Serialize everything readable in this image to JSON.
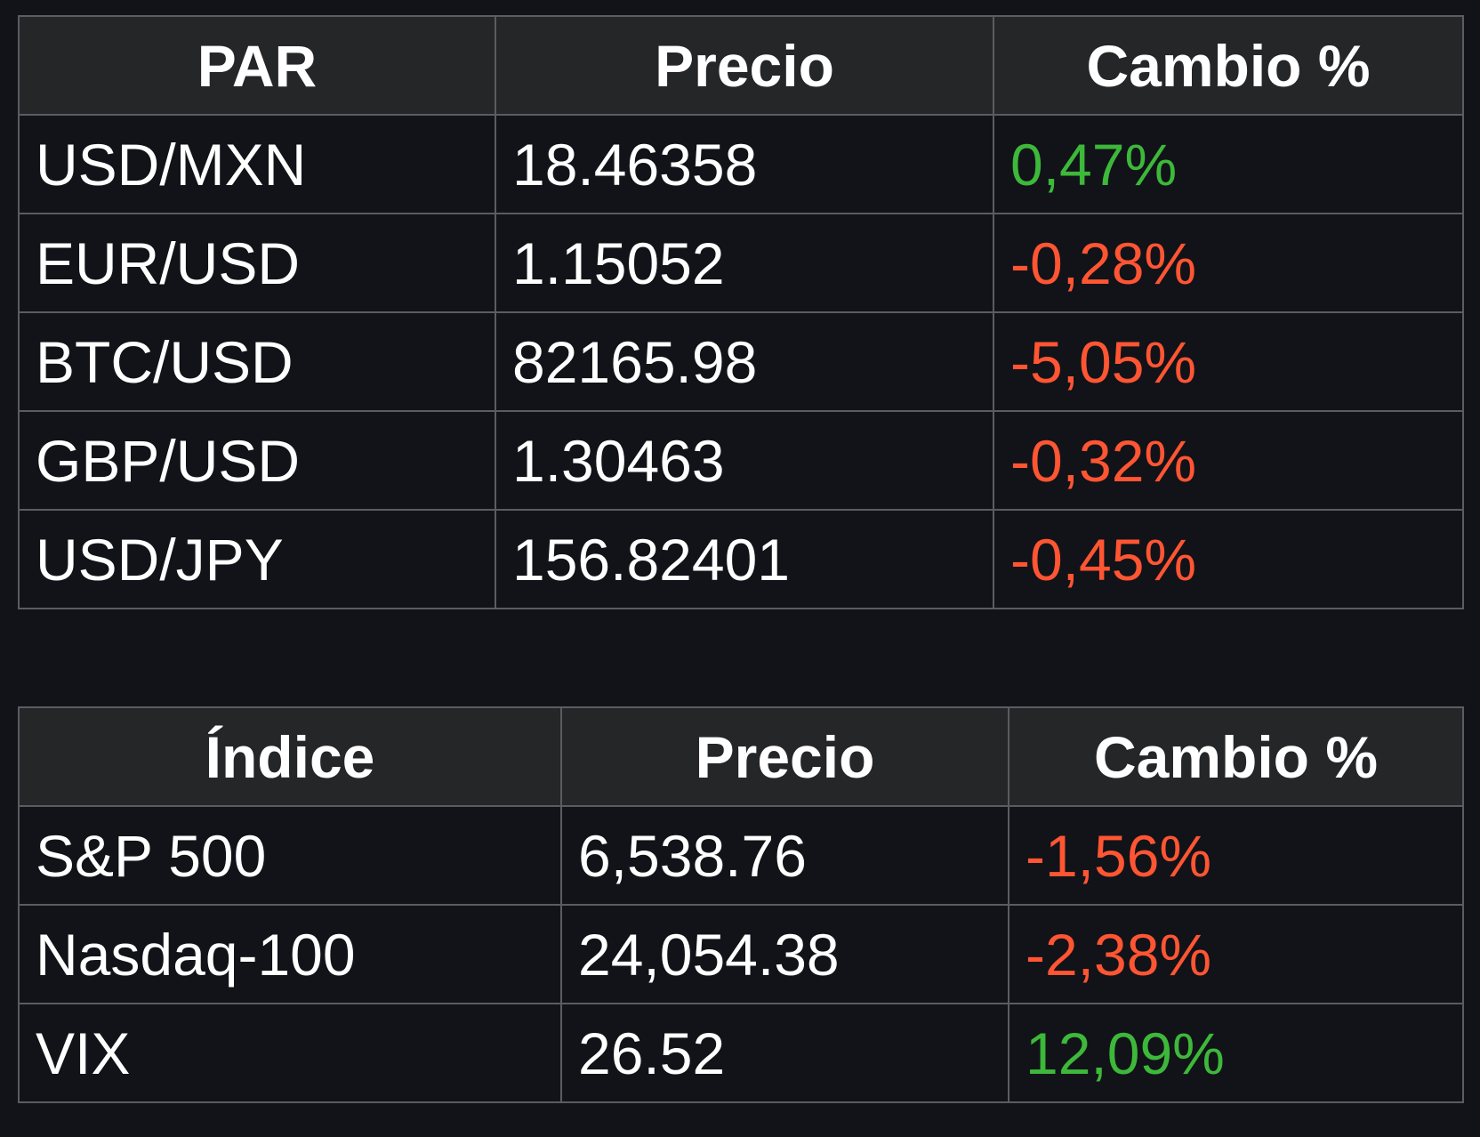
{
  "colors": {
    "positive": "#3db83a",
    "negative": "#ff5533"
  },
  "fx_table": {
    "headers": [
      "PAR",
      "Precio",
      "Cambio %"
    ],
    "rows": [
      {
        "pair": "USD/MXN",
        "price": "18.46358",
        "change": "0,47%",
        "direction": "positive"
      },
      {
        "pair": "EUR/USD",
        "price": "1.15052",
        "change": "-0,28%",
        "direction": "negative"
      },
      {
        "pair": "BTC/USD",
        "price": "82165.98",
        "change": "-5,05%",
        "direction": "negative"
      },
      {
        "pair": "GBP/USD",
        "price": "1.30463",
        "change": "-0,32%",
        "direction": "negative"
      },
      {
        "pair": "USD/JPY",
        "price": "156.82401",
        "change": "-0,45%",
        "direction": "negative"
      }
    ]
  },
  "index_table": {
    "headers": [
      "Índice",
      "Precio",
      "Cambio %"
    ],
    "rows": [
      {
        "index": "S&P 500",
        "price": "6,538.76",
        "change": "-1,56%",
        "direction": "negative"
      },
      {
        "index": "Nasdaq-100",
        "price": "24,054.38",
        "change": "-2,38%",
        "direction": "negative"
      },
      {
        "index": "VIX",
        "price": "26.52",
        "change": "12,09%",
        "direction": "positive"
      }
    ]
  }
}
